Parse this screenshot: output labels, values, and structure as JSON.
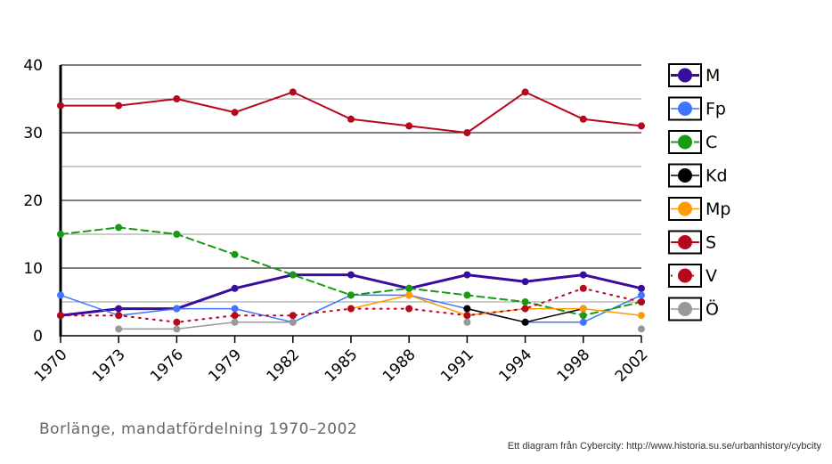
{
  "chart_data": {
    "type": "line",
    "title": "",
    "xlabel": "",
    "ylabel": "",
    "x": [
      "1970",
      "1973",
      "1976",
      "1979",
      "1982",
      "1985",
      "1988",
      "1991",
      "1994",
      "1998",
      "2002"
    ],
    "ylim": [
      0,
      40
    ],
    "yticks": [
      0,
      10,
      20,
      30,
      40
    ],
    "grid": true,
    "legend": "right",
    "series": [
      {
        "name": "M",
        "color": "#3a0c9e",
        "style": "solid",
        "width": 3,
        "values": [
          3,
          4,
          4,
          7,
          9,
          9,
          7,
          9,
          8,
          9,
          7
        ]
      },
      {
        "name": "Fp",
        "color": "#3f74ff",
        "style": "solid",
        "width": 1.5,
        "values": [
          6,
          3,
          4,
          4,
          2,
          6,
          6,
          4,
          2,
          2,
          6
        ]
      },
      {
        "name": "C",
        "color": "#1a9a14",
        "style": "dashed",
        "width": 2,
        "values": [
          15,
          16,
          15,
          12,
          9,
          6,
          7,
          6,
          5,
          3,
          5
        ]
      },
      {
        "name": "Kd",
        "color": "#000000",
        "style": "solid",
        "width": 1.5,
        "values": [
          null,
          null,
          null,
          null,
          null,
          null,
          null,
          4,
          2,
          4,
          null
        ]
      },
      {
        "name": "Mp",
        "color": "#ff9a00",
        "style": "solid",
        "width": 1.5,
        "values": [
          null,
          null,
          null,
          null,
          null,
          4,
          6,
          3,
          4,
          4,
          3
        ]
      },
      {
        "name": "S",
        "color": "#b5081c",
        "style": "solid",
        "width": 2,
        "values": [
          34,
          34,
          35,
          33,
          36,
          32,
          31,
          30,
          36,
          32,
          31
        ]
      },
      {
        "name": "V",
        "color": "#b5081c",
        "style": "dotted",
        "width": 2,
        "values": [
          3,
          3,
          2,
          3,
          3,
          4,
          4,
          3,
          4,
          7,
          5
        ]
      },
      {
        "name": "Ö",
        "color": "#999999",
        "style": "solid",
        "width": 1.5,
        "values": [
          null,
          1,
          1,
          2,
          2,
          null,
          null,
          2,
          null,
          null,
          1
        ]
      }
    ]
  },
  "caption": "Borlänge, mandatfördelning 1970–2002",
  "credit": "Ett diagram från Cybercity: http://www.historia.su.se/urbanhistory/cybcity"
}
